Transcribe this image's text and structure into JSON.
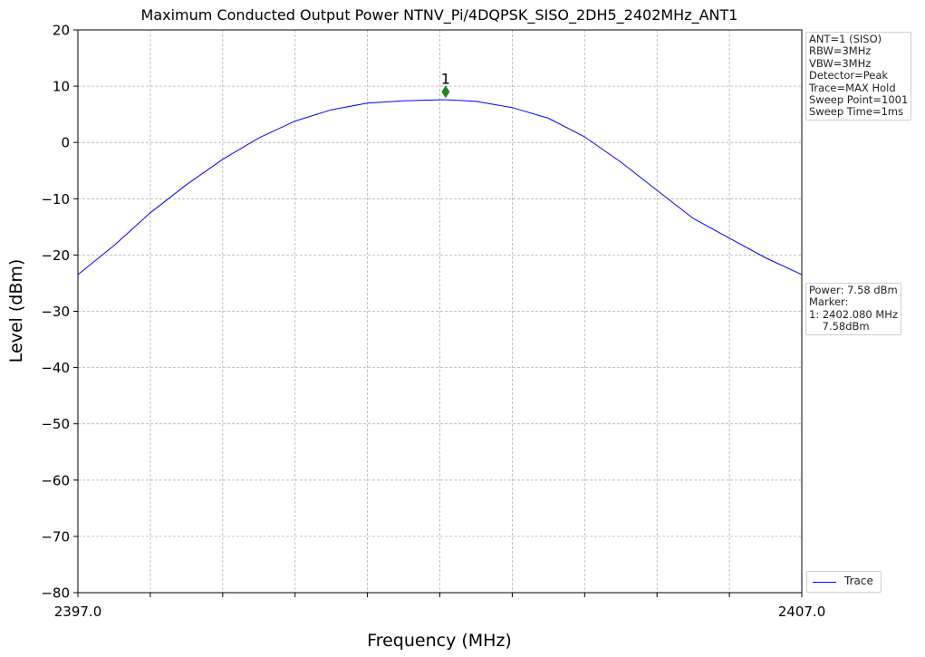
{
  "chart_data": {
    "type": "line",
    "title": "Maximum Conducted Output Power NTNV_Pi/4DQPSK_SISO_2DH5_2402MHz_ANT1",
    "xlabel": "Frequency (MHz)",
    "ylabel": "Level (dBm)",
    "xlim": [
      2397.0,
      2407.0
    ],
    "ylim": [
      -80,
      20
    ],
    "x_tick_labels": [
      "2397.0",
      "2407.0"
    ],
    "x_minor_ticks": [
      2398,
      2399,
      2400,
      2401,
      2402,
      2403,
      2404,
      2405,
      2406
    ],
    "y_ticks": [
      20,
      10,
      0,
      -10,
      -20,
      -30,
      -40,
      -50,
      -60,
      -70,
      -80
    ],
    "y_tick_labels": [
      "20",
      "10",
      "0",
      "−10",
      "−20",
      "−30",
      "−40",
      "−50",
      "−60",
      "−70",
      "−80"
    ],
    "grid": true,
    "series": [
      {
        "name": "Trace",
        "color": "#0000ff",
        "x": [
          2397.0,
          2397.5,
          2398.0,
          2398.5,
          2399.0,
          2399.5,
          2400.0,
          2400.5,
          2401.0,
          2401.5,
          2402.0,
          2402.1,
          2402.5,
          2403.0,
          2403.5,
          2404.0,
          2404.5,
          2405.0,
          2405.5,
          2406.0,
          2406.5,
          2407.0
        ],
        "y": [
          -23.5,
          -18.3,
          -12.5,
          -7.5,
          -3.0,
          0.8,
          3.8,
          5.8,
          7.0,
          7.4,
          7.58,
          7.58,
          7.3,
          6.2,
          4.3,
          1.0,
          -3.5,
          -8.5,
          -13.5,
          -17.0,
          -20.5,
          -23.5
        ]
      }
    ],
    "marker": {
      "label": "1",
      "x": 2402.08,
      "y": 9.0,
      "color": "#1a8a1a"
    },
    "legend": {
      "placement": "bottom-right-outside",
      "entries": [
        "Trace"
      ]
    }
  },
  "settings_lines": [
    "ANT=1 (SISO)",
    "RBW=3MHz",
    "VBW=3MHz",
    "Detector=Peak",
    "Trace=MAX Hold",
    "Sweep Point=1001",
    "Sweep Time=1ms"
  ],
  "result_lines": [
    "Power: 7.58 dBm",
    "Marker:",
    "1: 2402.080 MHz",
    "    7.58dBm"
  ],
  "legend_label": "Trace"
}
